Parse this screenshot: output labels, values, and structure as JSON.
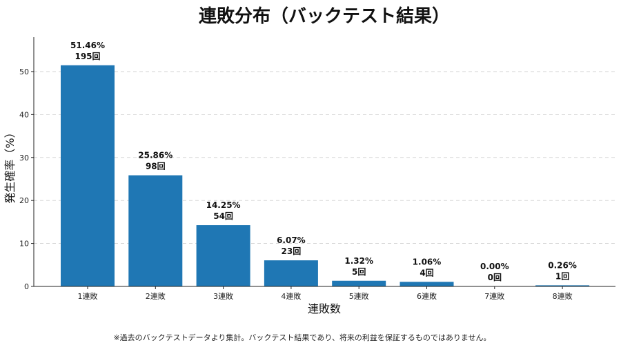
{
  "chart_data": {
    "type": "bar",
    "title": "連敗分布（バックテスト結果）",
    "xlabel": "連敗数",
    "ylabel": "発生確率（%）",
    "categories": [
      "1連敗",
      "2連敗",
      "3連敗",
      "4連敗",
      "5連敗",
      "6連敗",
      "7連敗",
      "8連敗"
    ],
    "values": [
      51.46,
      25.86,
      14.25,
      6.07,
      1.32,
      1.06,
      0.0,
      0.26
    ],
    "pct_labels": [
      "51.46%",
      "25.86%",
      "14.25%",
      "6.07%",
      "1.32%",
      "1.06%",
      "0.00%",
      "0.26%"
    ],
    "count_labels": [
      "195回",
      "98回",
      "54回",
      "23回",
      "5回",
      "4回",
      "0回",
      "1回"
    ],
    "ylim": [
      0,
      58
    ],
    "yticks": [
      0,
      10,
      20,
      30,
      40,
      50
    ],
    "grid": "horizontal dashed",
    "bar_color": "#1f77b4"
  },
  "footnote": "※過去のバックテストデータより集計。バックテスト結果であり、将来の利益を保証するものではありません。"
}
